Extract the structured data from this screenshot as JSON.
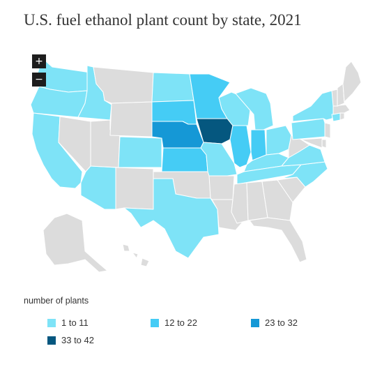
{
  "title": "U.S. fuel ethanol plant count by state, 2021",
  "controls": {
    "zoom_in": "+",
    "zoom_out": "−"
  },
  "legend": {
    "title": "number of plants",
    "bins": [
      {
        "label": "1 to 11",
        "color": "#7ee3f7"
      },
      {
        "label": "12 to 22",
        "color": "#45ccf5"
      },
      {
        "label": "23 to 32",
        "color": "#1598d6"
      },
      {
        "label": "33 to 42",
        "color": "#05577f"
      }
    ],
    "no_data_color": "#dcdcdc"
  },
  "map_data": {
    "states": [
      {
        "id": "WA",
        "bin": 0
      },
      {
        "id": "OR",
        "bin": 0
      },
      {
        "id": "CA",
        "bin": 0
      },
      {
        "id": "ID",
        "bin": 0
      },
      {
        "id": "NV",
        "bin": null
      },
      {
        "id": "AZ",
        "bin": 0
      },
      {
        "id": "UT",
        "bin": null
      },
      {
        "id": "MT",
        "bin": null
      },
      {
        "id": "WY",
        "bin": null
      },
      {
        "id": "CO",
        "bin": 0
      },
      {
        "id": "NM",
        "bin": null
      },
      {
        "id": "ND",
        "bin": 0
      },
      {
        "id": "SD",
        "bin": 1
      },
      {
        "id": "NE",
        "bin": 2
      },
      {
        "id": "KS",
        "bin": 1
      },
      {
        "id": "OK",
        "bin": null
      },
      {
        "id": "TX",
        "bin": 0
      },
      {
        "id": "MN",
        "bin": 1
      },
      {
        "id": "IA",
        "bin": 3
      },
      {
        "id": "MO",
        "bin": 0
      },
      {
        "id": "AR",
        "bin": null
      },
      {
        "id": "LA",
        "bin": null
      },
      {
        "id": "WI",
        "bin": 0
      },
      {
        "id": "IL",
        "bin": 1
      },
      {
        "id": "MI",
        "bin": 0
      },
      {
        "id": "IN",
        "bin": 1
      },
      {
        "id": "OH",
        "bin": 0
      },
      {
        "id": "KY",
        "bin": 0
      },
      {
        "id": "TN",
        "bin": 0
      },
      {
        "id": "MS",
        "bin": null
      },
      {
        "id": "AL",
        "bin": null
      },
      {
        "id": "GA",
        "bin": null
      },
      {
        "id": "FL",
        "bin": null
      },
      {
        "id": "SC",
        "bin": null
      },
      {
        "id": "NC",
        "bin": 0
      },
      {
        "id": "VA",
        "bin": 0
      },
      {
        "id": "WV",
        "bin": null
      },
      {
        "id": "PA",
        "bin": 0
      },
      {
        "id": "NY",
        "bin": 0
      },
      {
        "id": "NJ",
        "bin": null
      },
      {
        "id": "DE",
        "bin": null
      },
      {
        "id": "MD",
        "bin": null
      },
      {
        "id": "CT",
        "bin": 0
      },
      {
        "id": "RI",
        "bin": null
      },
      {
        "id": "MA",
        "bin": null
      },
      {
        "id": "VT",
        "bin": null
      },
      {
        "id": "NH",
        "bin": null
      },
      {
        "id": "ME",
        "bin": null
      },
      {
        "id": "AK",
        "bin": null
      },
      {
        "id": "HI",
        "bin": null
      }
    ]
  }
}
